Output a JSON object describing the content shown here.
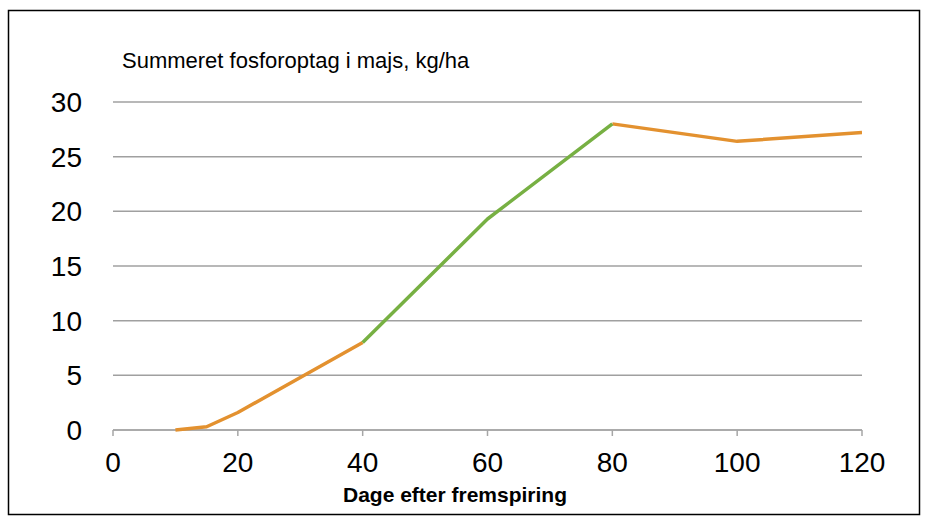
{
  "chart_data": {
    "type": "line",
    "title": "Summeret fosforoptag i majs, kg/ha",
    "x_label": "Dage efter fremspiring",
    "x": [
      10,
      15,
      20,
      40,
      60,
      80,
      100,
      120
    ],
    "series": [
      {
        "color": "#e3912f",
        "values": [
          0,
          0.3,
          1.6,
          8,
          null,
          28,
          26.4,
          27.2
        ]
      },
      {
        "color": "#77b043",
        "values": [
          null,
          null,
          null,
          8,
          19.3,
          28,
          null,
          null
        ]
      }
    ],
    "xlim": [
      0,
      120
    ],
    "xticks": [
      0,
      20,
      40,
      60,
      80,
      100,
      120
    ],
    "ylim": [
      0,
      30
    ],
    "yticks": [
      0,
      5,
      10,
      15,
      20,
      25,
      30
    ],
    "grid": true
  }
}
